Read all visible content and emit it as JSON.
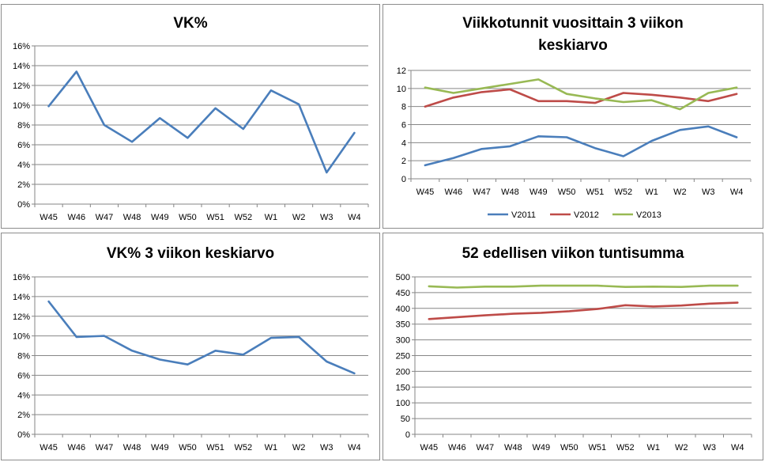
{
  "chart_data": [
    {
      "id": "chart1",
      "type": "line",
      "title": "VK%",
      "categories": [
        "W45",
        "W46",
        "W47",
        "W48",
        "W49",
        "W50",
        "W51",
        "W52",
        "W1",
        "W2",
        "W3",
        "W4"
      ],
      "y_ticks": [
        "0%",
        "2%",
        "4%",
        "6%",
        "8%",
        "10%",
        "12%",
        "14%",
        "16%"
      ],
      "ylim": [
        0,
        16
      ],
      "grid": true,
      "legend": "none",
      "series": [
        {
          "values": [
            9.9,
            13.4,
            8.0,
            6.3,
            8.7,
            6.7,
            9.7,
            7.6,
            11.5,
            10.1,
            3.2,
            7.2
          ],
          "color": "#4a7ebb"
        }
      ]
    },
    {
      "id": "chart2",
      "type": "line",
      "title": "Viikkotunnit vuosittain 3 viikon keskiarvo",
      "categories": [
        "W45",
        "W46",
        "W47",
        "W48",
        "W49",
        "W50",
        "W51",
        "W52",
        "W1",
        "W2",
        "W3",
        "W4"
      ],
      "y_ticks": [
        "0",
        "2",
        "4",
        "6",
        "8",
        "10",
        "12"
      ],
      "ylim": [
        0,
        12
      ],
      "grid": true,
      "legend": "bottom",
      "series": [
        {
          "name": "V2011",
          "values": [
            1.5,
            2.3,
            3.3,
            3.6,
            4.7,
            4.6,
            3.4,
            2.5,
            4.2,
            5.4,
            5.8,
            4.6
          ],
          "color": "#4a7ebb"
        },
        {
          "name": "V2012",
          "values": [
            8.0,
            9.0,
            9.6,
            9.9,
            8.6,
            8.6,
            8.4,
            9.5,
            9.3,
            9.0,
            8.6,
            9.4
          ],
          "color": "#be4b48"
        },
        {
          "name": "V2013",
          "values": [
            10.1,
            9.5,
            10.0,
            10.5,
            11.0,
            9.4,
            8.9,
            8.5,
            8.7,
            7.7,
            9.5,
            10.1
          ],
          "color": "#98b954"
        }
      ]
    },
    {
      "id": "chart3",
      "type": "line",
      "title": "VK% 3 viikon keskiarvo",
      "categories": [
        "W45",
        "W46",
        "W47",
        "W48",
        "W49",
        "W50",
        "W51",
        "W52",
        "W1",
        "W2",
        "W3",
        "W4"
      ],
      "y_ticks": [
        "0%",
        "2%",
        "4%",
        "6%",
        "8%",
        "10%",
        "12%",
        "14%",
        "16%"
      ],
      "ylim": [
        0,
        16
      ],
      "grid": true,
      "legend": "none",
      "series": [
        {
          "values": [
            13.5,
            9.9,
            10.0,
            8.5,
            7.6,
            7.1,
            8.5,
            8.1,
            9.8,
            9.9,
            7.4,
            6.2
          ],
          "color": "#4a7ebb"
        }
      ]
    },
    {
      "id": "chart4",
      "type": "line",
      "title": "52 edellisen viikon tuntisumma",
      "categories": [
        "W45",
        "W46",
        "W47",
        "W48",
        "W49",
        "W50",
        "W51",
        "W52",
        "W1",
        "W2",
        "W3",
        "W4"
      ],
      "y_ticks": [
        "0",
        "50",
        "100",
        "150",
        "200",
        "250",
        "300",
        "350",
        "400",
        "450",
        "500"
      ],
      "ylim": [
        0,
        500
      ],
      "grid": true,
      "legend": "none",
      "series": [
        {
          "values": [
            366,
            372,
            378,
            383,
            386,
            391,
            398,
            410,
            406,
            409,
            415,
            418
          ],
          "color": "#be4b48"
        },
        {
          "values": [
            470,
            466,
            469,
            469,
            472,
            472,
            472,
            468,
            469,
            468,
            472,
            472
          ],
          "color": "#98b954"
        }
      ]
    }
  ]
}
